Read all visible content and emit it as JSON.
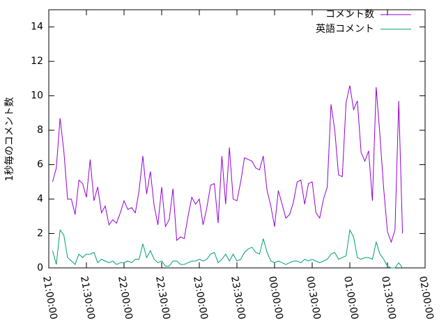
{
  "chart_data": {
    "type": "line",
    "ylabel": "1秒毎のコメント数",
    "x": [
      "21:03:00",
      "21:06:00",
      "21:09:00",
      "21:12:00",
      "21:15:00",
      "21:18:00",
      "21:21:00",
      "21:24:00",
      "21:27:00",
      "21:30:00",
      "21:33:00",
      "21:36:00",
      "21:39:00",
      "21:42:00",
      "21:45:00",
      "21:48:00",
      "21:51:00",
      "21:54:00",
      "21:57:00",
      "22:00:00",
      "22:03:00",
      "22:06:00",
      "22:09:00",
      "22:12:00",
      "22:15:00",
      "22:18:00",
      "22:21:00",
      "22:24:00",
      "22:27:00",
      "22:30:00",
      "22:33:00",
      "22:36:00",
      "22:39:00",
      "22:42:00",
      "22:45:00",
      "22:48:00",
      "22:51:00",
      "22:54:00",
      "22:57:00",
      "23:00:00",
      "23:03:00",
      "23:06:00",
      "23:09:00",
      "23:12:00",
      "23:15:00",
      "23:18:00",
      "23:21:00",
      "23:24:00",
      "23:27:00",
      "23:30:00",
      "23:33:00",
      "23:36:00",
      "23:39:00",
      "23:42:00",
      "23:45:00",
      "23:48:00",
      "23:51:00",
      "23:54:00",
      "23:57:00",
      "00:00:00",
      "00:03:00",
      "00:06:00",
      "00:09:00",
      "00:12:00",
      "00:15:00",
      "00:18:00",
      "00:21:00",
      "00:24:00",
      "00:27:00",
      "00:30:00",
      "00:33:00",
      "00:36:00",
      "00:39:00",
      "00:42:00",
      "00:45:00",
      "00:48:00",
      "00:51:00",
      "00:54:00",
      "00:57:00",
      "01:00:00",
      "01:03:00",
      "01:06:00",
      "01:09:00",
      "01:12:00",
      "01:15:00",
      "01:18:00",
      "01:21:00",
      "01:24:00",
      "01:27:00",
      "01:30:00",
      "01:33:00",
      "01:36:00",
      "01:39:00",
      "01:42:00"
    ],
    "series": [
      {
        "name": "コメント数",
        "color": "#9400d3",
        "values": [
          5.0,
          5.8,
          8.7,
          6.8,
          4.0,
          4.0,
          3.1,
          5.1,
          4.9,
          4.1,
          6.3,
          3.9,
          4.7,
          3.2,
          3.6,
          2.5,
          2.8,
          2.6,
          3.2,
          3.9,
          3.4,
          3.5,
          3.2,
          4.5,
          6.5,
          4.3,
          5.6,
          3.6,
          2.5,
          4.7,
          2.4,
          2.8,
          4.6,
          1.6,
          1.8,
          1.7,
          3.0,
          4.1,
          3.7,
          4.0,
          2.5,
          3.5,
          4.8,
          4.9,
          2.6,
          6.5,
          3.7,
          7.0,
          4.0,
          3.9,
          5.0,
          6.4,
          6.3,
          6.2,
          5.8,
          5.7,
          6.5,
          4.5,
          3.6,
          2.4,
          4.5,
          3.7,
          2.9,
          3.1,
          3.8,
          5.0,
          5.1,
          3.7,
          4.9,
          5.0,
          3.2,
          2.9,
          4.0,
          4.7,
          9.5,
          8.0,
          5.4,
          5.3,
          9.6,
          10.6,
          9.2,
          9.7,
          6.7,
          6.2,
          6.8,
          3.9,
          10.5,
          7.7,
          4.6,
          2.1,
          1.5,
          2.2,
          9.7,
          2.0
        ]
      },
      {
        "name": "英語コメント",
        "color": "#009e73",
        "values": [
          1.0,
          0.2,
          2.2,
          1.9,
          0.6,
          0.4,
          0.2,
          0.8,
          0.6,
          0.8,
          0.8,
          0.9,
          0.3,
          0.5,
          0.4,
          0.3,
          0.4,
          0.2,
          0.3,
          0.3,
          0.4,
          0.3,
          0.5,
          0.5,
          1.4,
          0.6,
          1.0,
          0.5,
          0.3,
          0.4,
          0.1,
          0.1,
          0.4,
          0.4,
          0.2,
          0.2,
          0.3,
          0.4,
          0.4,
          0.5,
          0.4,
          0.5,
          0.8,
          0.9,
          0.3,
          0.5,
          0.8,
          0.4,
          0.8,
          0.4,
          0.5,
          0.9,
          1.1,
          1.2,
          0.9,
          0.8,
          1.7,
          0.9,
          0.4,
          0.3,
          0.4,
          0.3,
          0.2,
          0.3,
          0.4,
          0.4,
          0.3,
          0.5,
          0.4,
          0.5,
          0.4,
          0.3,
          0.4,
          0.5,
          0.8,
          0.9,
          0.5,
          0.6,
          0.7,
          2.2,
          1.8,
          0.6,
          0.5,
          0.6,
          0.6,
          0.5,
          1.5,
          0.8,
          0.5,
          0.1,
          0.0,
          0.0,
          0.3,
          0.0
        ]
      }
    ],
    "xlim": [
      "21:00:00",
      "02:00:00"
    ],
    "xticks": [
      "21:00:00",
      "21:30:00",
      "22:00:00",
      "22:30:00",
      "23:00:00",
      "23:30:00",
      "00:00:00",
      "00:30:00",
      "01:00:00",
      "01:30:00",
      "02:00:00"
    ],
    "ylim": [
      0,
      15
    ],
    "yticks": [
      0,
      2,
      4,
      6,
      8,
      10,
      12,
      14
    ],
    "legend": "upper-right"
  }
}
